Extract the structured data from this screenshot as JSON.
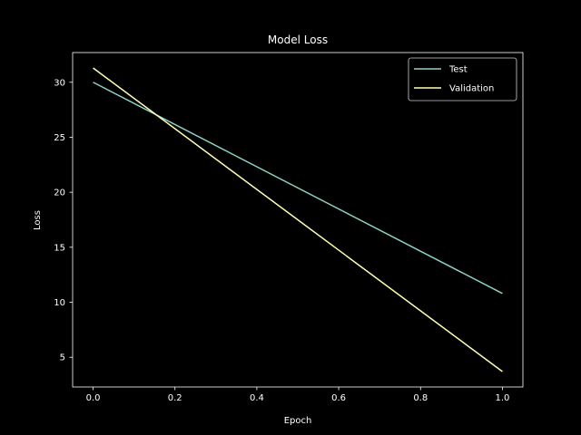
{
  "chart_data": {
    "type": "line",
    "title": "Model Loss",
    "xlabel": "Epoch",
    "ylabel": "Loss",
    "xlim": [
      -0.05,
      1.05
    ],
    "ylim": [
      2.3,
      32.7
    ],
    "xticks": [
      0.0,
      0.2,
      0.4,
      0.6,
      0.8,
      1.0
    ],
    "xtick_labels": [
      "0.0",
      "0.2",
      "0.4",
      "0.6",
      "0.8",
      "1.0"
    ],
    "yticks": [
      5,
      10,
      15,
      20,
      25,
      30
    ],
    "ytick_labels": [
      "5",
      "10",
      "15",
      "20",
      "25",
      "30"
    ],
    "grid": false,
    "legend_position": "top-right",
    "background": "#000000",
    "axes_color": "#ffffff",
    "series": [
      {
        "name": "Test",
        "x": [
          0.0,
          1.0
        ],
        "values": [
          30.0,
          10.8
        ],
        "color": "#8dd3c7"
      },
      {
        "name": "Validation",
        "x": [
          0.0,
          1.0
        ],
        "values": [
          31.3,
          3.7
        ],
        "color": "#ffffb3"
      }
    ]
  }
}
